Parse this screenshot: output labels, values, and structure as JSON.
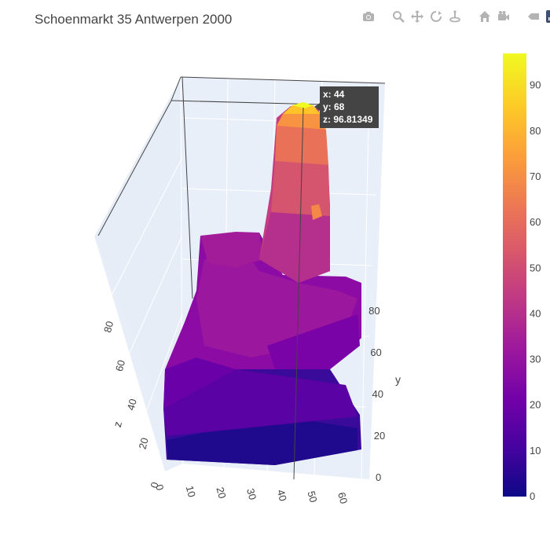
{
  "title": "Schoenmarkt 35 Antwerpen 2000",
  "modebar": {
    "icons": [
      "camera-icon",
      "zoom-icon",
      "pan-icon",
      "orbit-icon",
      "turntable-icon",
      "home-icon",
      "camera-view-icon",
      "hover-toggle-icon",
      "plotly-logo-icon"
    ],
    "color": "#b3b3b3",
    "active_color": "#506784"
  },
  "hover": {
    "x_label": "x: 44",
    "y_label": "y: 68",
    "z_label": "z: 96.81349"
  },
  "chart_data": {
    "type": "surface",
    "title": "Schoenmarkt 35 Antwerpen 2000",
    "colorscale": "Plasma",
    "colorbar": {
      "ticks": [
        "0",
        "10",
        "20",
        "30",
        "40",
        "50",
        "60",
        "70",
        "80",
        "90"
      ],
      "tick_values": [
        0,
        10,
        20,
        30,
        40,
        50,
        60,
        70,
        80,
        90
      ],
      "range": [
        0,
        97
      ]
    },
    "x_axis": {
      "title": "",
      "ticks": [
        "0",
        "10",
        "20",
        "30",
        "40",
        "50",
        "60"
      ],
      "range": [
        0,
        60
      ]
    },
    "y_axis": {
      "title": "y",
      "ticks": [
        "0",
        "20",
        "40",
        "60",
        "80"
      ],
      "range": [
        0,
        90
      ]
    },
    "z_axis": {
      "title": "z",
      "ticks": [
        "0",
        "20",
        "40",
        "60",
        "80"
      ],
      "range": [
        0,
        97
      ]
    },
    "hover_point": {
      "x": 44,
      "y": 68,
      "z": 96.81349
    },
    "peak_z": 96.81349
  }
}
